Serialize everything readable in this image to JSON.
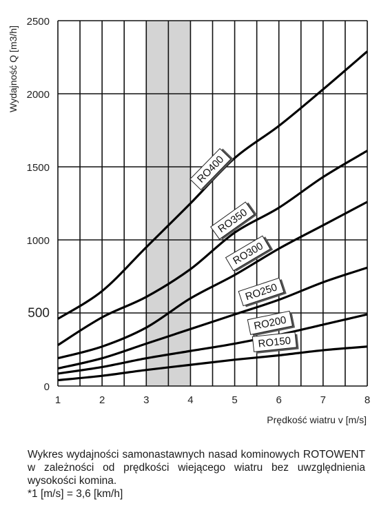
{
  "chart_data": {
    "type": "line",
    "title": "",
    "xlabel": "Prędkość wiatru v [m/s]",
    "ylabel": "Wydajność Q [m3/h]",
    "xlim": [
      1,
      8
    ],
    "ylim": [
      0,
      2500
    ],
    "x_ticks": [
      "1",
      "2",
      "3",
      "4",
      "5",
      "6",
      "7",
      "8"
    ],
    "y_ticks": [
      "0",
      "500",
      "1000",
      "1500",
      "2000",
      "2500"
    ],
    "grid": true,
    "highlight_band": {
      "x": [
        3,
        4
      ]
    },
    "x": [
      1,
      2,
      3,
      4,
      5,
      6,
      7,
      8
    ],
    "series": [
      {
        "name": "RO400",
        "values": [
          460,
          650,
          950,
          1250,
          1560,
          1780,
          2030,
          2290
        ]
      },
      {
        "name": "RO350",
        "values": [
          280,
          470,
          610,
          800,
          1050,
          1220,
          1430,
          1610
        ]
      },
      {
        "name": "RO300",
        "values": [
          190,
          270,
          400,
          600,
          760,
          940,
          1100,
          1260
        ]
      },
      {
        "name": "RO250",
        "values": [
          120,
          190,
          290,
          390,
          490,
          590,
          710,
          810
        ]
      },
      {
        "name": "RO200",
        "values": [
          85,
          130,
          190,
          240,
          290,
          350,
          420,
          490
        ]
      },
      {
        "name": "RO150",
        "values": [
          40,
          70,
          110,
          145,
          180,
          210,
          245,
          270
        ]
      }
    ]
  },
  "caption": {
    "description": "Wykres wydajności samonastawnych nasad kominowych ROTOWENT w zależności od prędkości wiejącego wiatru bez uwzględnienia wysokości komina.",
    "footnote": "*1 [m/s] = 3,6 [km/h]"
  }
}
